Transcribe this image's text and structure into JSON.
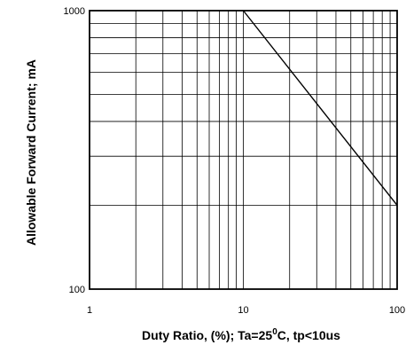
{
  "chart_data": {
    "type": "line",
    "x_scale": "log",
    "y_scale": "log",
    "xlim": [
      1,
      100
    ],
    "ylim": [
      100,
      1000
    ],
    "grid": true,
    "xlabel_parts": [
      "Duty Ratio, (%); Ta=25",
      "0",
      "C, tp<10us"
    ],
    "ylabel": "Allowable Forward Current; mA",
    "x_tick_labels": [
      {
        "value": 1,
        "label": "1"
      },
      {
        "value": 10,
        "label": "10"
      },
      {
        "value": 100,
        "label": "100"
      }
    ],
    "y_tick_labels": [
      {
        "value": 100,
        "label": "100"
      },
      {
        "value": 1000,
        "label": "1000"
      }
    ],
    "series": [
      {
        "x": [
          10,
          100
        ],
        "y": [
          1000,
          200
        ]
      }
    ],
    "colors": {
      "line": "#000000",
      "grid": "#000000",
      "frame": "#000000"
    }
  }
}
